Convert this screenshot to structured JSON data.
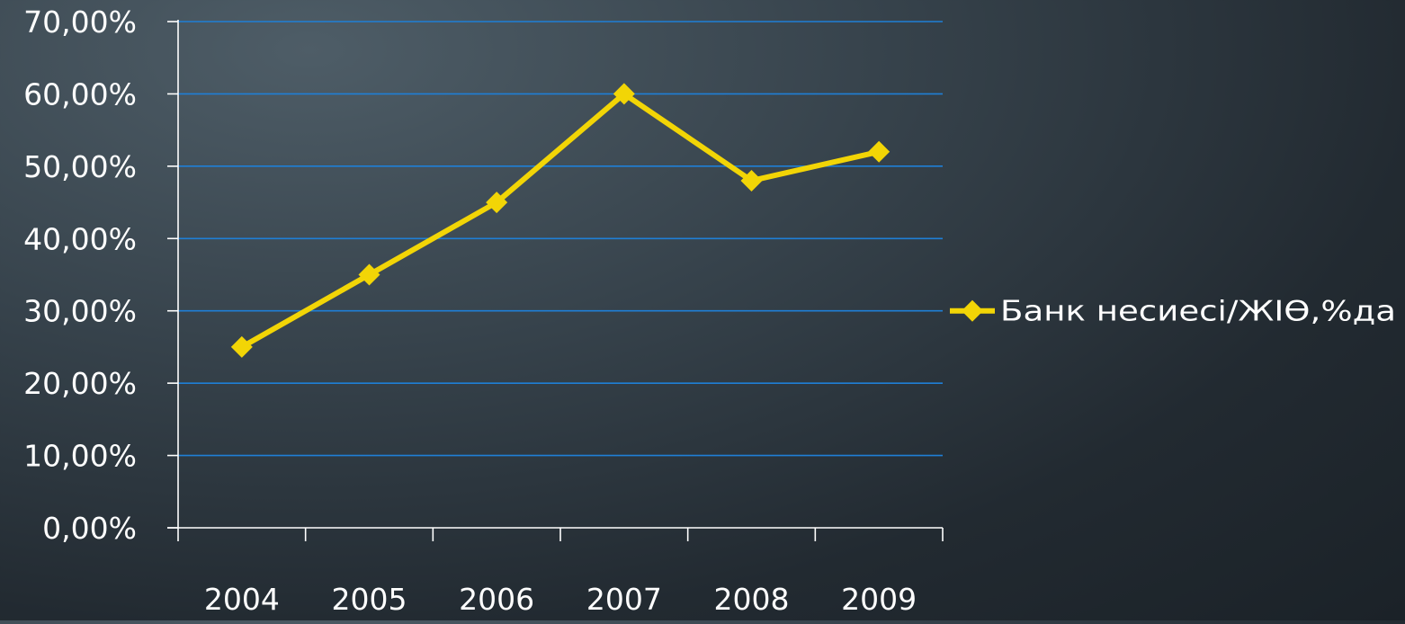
{
  "chart_data": {
    "type": "line",
    "categories": [
      "2004",
      "2005",
      "2006",
      "2007",
      "2008",
      "2009"
    ],
    "series": [
      {
        "name": "Банк несиесі/ЖІӨ,%да",
        "values": [
          25,
          35,
          45,
          60,
          48,
          52
        ],
        "color": "#f2d506",
        "marker": "diamond"
      }
    ],
    "ylim": [
      0,
      70
    ],
    "yticks": [
      0,
      10,
      20,
      30,
      40,
      50,
      60,
      70
    ],
    "ytick_labels": [
      "0,00%",
      "10,00%",
      "20,00%",
      "30,00%",
      "40,00%",
      "50,00%",
      "60,00%",
      "70,00%"
    ],
    "grid": true,
    "grid_color": "#1f7fd6",
    "axis_color": "#ffffff",
    "text_color": "#ffffff",
    "legend_position": "right"
  }
}
